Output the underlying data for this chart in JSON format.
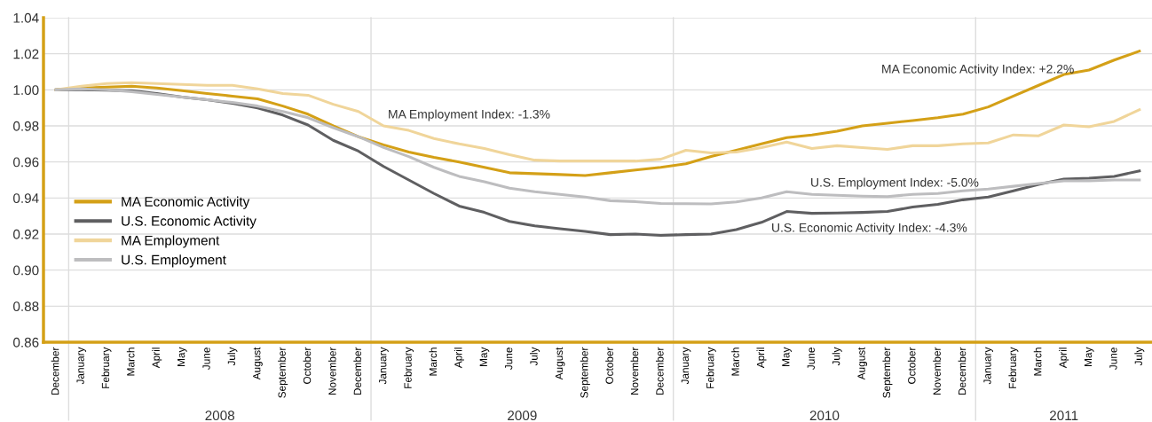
{
  "chart_data": {
    "type": "line",
    "categories": [
      "December",
      "January",
      "February",
      "March",
      "April",
      "May",
      "June",
      "July",
      "August",
      "September",
      "October",
      "November",
      "December",
      "January",
      "February",
      "March",
      "April",
      "May",
      "June",
      "July",
      "August",
      "September",
      "October",
      "November",
      "December",
      "January",
      "February",
      "March",
      "April",
      "May",
      "June",
      "July",
      "August",
      "September",
      "October",
      "November",
      "December",
      "January",
      "February",
      "March",
      "April",
      "May",
      "June",
      "July"
    ],
    "series": [
      {
        "name": "MA Economic Activity",
        "color": "#d4a017",
        "values": [
          1.0,
          1.001,
          1.0015,
          1.002,
          1.001,
          0.9995,
          0.998,
          0.9965,
          0.995,
          0.991,
          0.9865,
          0.98,
          0.974,
          0.9695,
          0.9655,
          0.9625,
          0.96,
          0.957,
          0.954,
          0.9535,
          0.953,
          0.9525,
          0.954,
          0.9555,
          0.957,
          0.959,
          0.963,
          0.9665,
          0.97,
          0.9735,
          0.975,
          0.977,
          0.98,
          0.9815,
          0.983,
          0.9845,
          0.9865,
          0.9905,
          0.9965,
          1.0025,
          1.0085,
          1.011,
          1.0165,
          1.0215
        ]
      },
      {
        "name": "U.S. Economic Activity",
        "color": "#5f5f61",
        "values": [
          1.0,
          1.0,
          0.9998,
          0.9995,
          0.998,
          0.996,
          0.9945,
          0.9925,
          0.99,
          0.986,
          0.9805,
          0.972,
          0.966,
          0.9575,
          0.95,
          0.9425,
          0.9355,
          0.932,
          0.927,
          0.9245,
          0.923,
          0.9215,
          0.9197,
          0.92,
          0.9193,
          0.9197,
          0.92,
          0.9225,
          0.9265,
          0.9325,
          0.9315,
          0.9317,
          0.932,
          0.9325,
          0.935,
          0.9365,
          0.939,
          0.9405,
          0.944,
          0.9475,
          0.9505,
          0.951,
          0.952,
          0.955
        ]
      },
      {
        "name": "MA Employment",
        "color": "#f0d59a",
        "values": [
          1.0,
          1.002,
          1.0035,
          1.004,
          1.0035,
          1.003,
          1.0025,
          1.0025,
          1.0005,
          0.998,
          0.997,
          0.992,
          0.988,
          0.98,
          0.9775,
          0.973,
          0.97,
          0.9675,
          0.964,
          0.961,
          0.9605,
          0.9605,
          0.9605,
          0.9605,
          0.9615,
          0.9665,
          0.965,
          0.9655,
          0.968,
          0.971,
          0.9675,
          0.969,
          0.968,
          0.967,
          0.969,
          0.969,
          0.97,
          0.9705,
          0.975,
          0.9745,
          0.9805,
          0.9795,
          0.9825,
          0.989
        ]
      },
      {
        "name": "U.S. Employment",
        "color": "#bdbdbf",
        "values": [
          1.0,
          1.0005,
          1.0,
          0.999,
          0.9975,
          0.996,
          0.9945,
          0.993,
          0.991,
          0.988,
          0.9845,
          0.979,
          0.974,
          0.968,
          0.963,
          0.957,
          0.952,
          0.949,
          0.9455,
          0.9435,
          0.942,
          0.9405,
          0.9385,
          0.938,
          0.937,
          0.9368,
          0.9367,
          0.9378,
          0.94,
          0.9435,
          0.942,
          0.9415,
          0.941,
          0.9408,
          0.942,
          0.9425,
          0.944,
          0.945,
          0.9465,
          0.948,
          0.9495,
          0.9495,
          0.95,
          0.95
        ]
      }
    ],
    "ylim": [
      0.86,
      1.04
    ],
    "yticks": [
      {
        "value": 0.86,
        "label": "0.86"
      },
      {
        "value": 0.88,
        "label": "0.88"
      },
      {
        "value": 0.9,
        "label": "0.90"
      },
      {
        "value": 0.92,
        "label": "0.92"
      },
      {
        "value": 0.94,
        "label": "0.94"
      },
      {
        "value": 0.96,
        "label": "0.96"
      },
      {
        "value": 0.98,
        "label": "0.98"
      },
      {
        "value": 1.0,
        "label": "1.00"
      },
      {
        "value": 1.02,
        "label": "1.02"
      },
      {
        "value": 1.04,
        "label": "1.04"
      }
    ],
    "grid": "y",
    "legend": "left",
    "marker": "none",
    "line_style": "solid",
    "annotations": [
      "MA Employment Index: -1.3%",
      "MA Economic Activity Index: +2.2%",
      "U.S. Employment Index: -5.0%",
      "U.S. Economic Activity Index: -4.3%",
      "2008",
      "2009",
      "2010",
      "2011"
    ]
  }
}
